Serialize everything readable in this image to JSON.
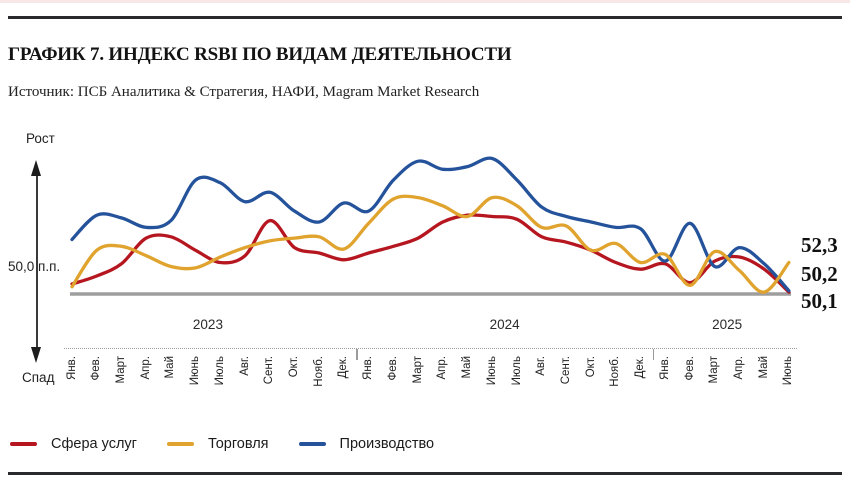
{
  "header": {
    "title": "ГРАФИК 7. ИНДЕКС RSBI ПО ВИДАМ ДЕЯТЕЛЬНОСТИ",
    "source": "Источник: ПСБ Аналитика & Стратегия, НАФИ, Magram Market Research"
  },
  "y_axis": {
    "growth_label": "Рост",
    "decline_label": "Спад",
    "baseline_label": "50,0 п.п."
  },
  "end_labels": [
    "52,3",
    "50,2",
    "50,1"
  ],
  "colors": {
    "services": "#b5161f",
    "trade": "#e0a32e",
    "manufacturing": "#25539b",
    "baseline_line": "#9e9e9e",
    "rule": "#2a2a2c"
  },
  "chart_data": {
    "type": "line",
    "title": "ИНДЕКС RSBI ПО ВИДАМ ДЕЯТЕЛЬНОСТИ",
    "xlabel": "",
    "ylabel": "п.п.",
    "baseline_value": 50.0,
    "ylim": [
      48.5,
      61.0
    ],
    "grid": false,
    "legend_position": "bottom",
    "x_months": [
      "Янв.",
      "Фев.",
      "Март",
      "Апр.",
      "Май",
      "Июнь",
      "Июль",
      "Авг.",
      "Сент.",
      "Окт.",
      "Нояб.",
      "Дек.",
      "Янв.",
      "Фев.",
      "Март",
      "Апр.",
      "Май",
      "Июнь",
      "Июль",
      "Авг.",
      "Сент.",
      "Окт.",
      "Нояб.",
      "Дек.",
      "Янв.",
      "Фев.",
      "Март",
      "Апр.",
      "Май",
      "Июнь"
    ],
    "x_years": [
      {
        "label": "2023",
        "months": 12
      },
      {
        "label": "2024",
        "months": 12
      },
      {
        "label": "2025",
        "months": 6
      }
    ],
    "series": [
      {
        "name": "Сфера услуг",
        "color": "#b5161f",
        "end_value": "50,1",
        "values": [
          50.7,
          51.3,
          52.2,
          54.1,
          54.2,
          53.2,
          52.3,
          52.8,
          55.4,
          53.4,
          53.0,
          52.5,
          53.0,
          53.5,
          54.1,
          55.3,
          55.8,
          55.7,
          55.5,
          54.2,
          53.8,
          53.2,
          52.3,
          51.8,
          52.2,
          50.8,
          52.4,
          52.7,
          51.8,
          50.1
        ]
      },
      {
        "name": "Торговля",
        "color": "#e0a32e",
        "end_value": "52,3",
        "values": [
          50.5,
          53.2,
          53.5,
          52.8,
          52.0,
          51.9,
          52.7,
          53.4,
          53.9,
          54.1,
          54.2,
          53.3,
          55.2,
          57.0,
          57.1,
          56.5,
          55.7,
          57.1,
          56.5,
          54.9,
          55.0,
          53.2,
          53.7,
          52.3,
          52.9,
          50.6,
          53.1,
          51.7,
          50.1,
          52.3
        ]
      },
      {
        "name": "Производство",
        "color": "#25539b",
        "end_value": "50,2",
        "values": [
          54.0,
          55.8,
          55.6,
          54.9,
          55.4,
          58.4,
          58.2,
          56.8,
          57.5,
          56.1,
          55.3,
          56.7,
          56.1,
          58.4,
          59.8,
          59.2,
          59.4,
          60.0,
          58.4,
          56.4,
          55.7,
          55.3,
          54.9,
          54.8,
          52.4,
          55.2,
          52.0,
          53.4,
          52.2,
          50.2
        ]
      }
    ]
  }
}
